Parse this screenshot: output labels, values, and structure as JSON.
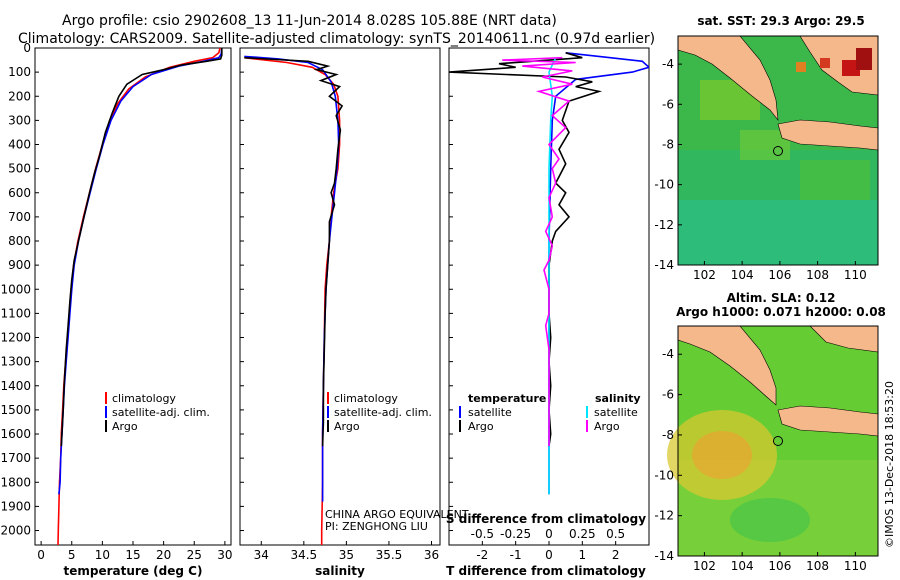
{
  "header": {
    "line1": "Argo profile: csio 2902608_13 11-Jun-2014 8.028S 105.88E (NRT data)",
    "line2": "Climatology: CARS2009. Satellite-adjusted climatology: synTS_20140611.nc (0.97d earlier)"
  },
  "depth_axis": {
    "ticks": [
      0,
      100,
      200,
      300,
      400,
      500,
      600,
      700,
      800,
      900,
      1000,
      1100,
      1200,
      1300,
      1400,
      1500,
      1600,
      1700,
      1800,
      1900,
      2000
    ],
    "range": [
      0,
      2060
    ]
  },
  "colors": {
    "climatology": "#ff0000",
    "satellite": "#0000ff",
    "argo": "#000000",
    "sal_satellite": "#00e5ff",
    "sal_argo": "#ff00ff",
    "land": "#f5b88a"
  },
  "chart_data": [
    {
      "type": "line",
      "name": "temperature-profile",
      "xlabel": "temperature (deg C)",
      "xlim": [
        -1,
        31
      ],
      "xticks": [
        0,
        5,
        10,
        15,
        20,
        25,
        30
      ],
      "ylim": [
        0,
        2060
      ],
      "y_inverted": true,
      "legend": [
        "climatology",
        "satellite-adj. clim.",
        "Argo"
      ],
      "legend_position": "bottom-center",
      "series": [
        {
          "name": "climatology",
          "color": "#ff0000",
          "points": [
            [
              29.2,
              0
            ],
            [
              29.0,
              20
            ],
            [
              28.0,
              40
            ],
            [
              25.0,
              55
            ],
            [
              21.0,
              80
            ],
            [
              17.0,
              120
            ],
            [
              14.3,
              170
            ],
            [
              12.5,
              230
            ],
            [
              11.2,
              300
            ],
            [
              10.0,
              400
            ],
            [
              8.9,
              500
            ],
            [
              7.9,
              600
            ],
            [
              6.9,
              700
            ],
            [
              6.0,
              800
            ],
            [
              5.3,
              900
            ],
            [
              4.9,
              1000
            ],
            [
              4.6,
              1100
            ],
            [
              4.3,
              1200
            ],
            [
              4.0,
              1300
            ],
            [
              3.7,
              1400
            ],
            [
              3.5,
              1500
            ],
            [
              3.3,
              1600
            ],
            [
              3.2,
              1700
            ],
            [
              3.0,
              1800
            ],
            [
              2.9,
              1900
            ],
            [
              2.8,
              2000
            ],
            [
              2.75,
              2060
            ]
          ]
        },
        {
          "name": "satellite-adj. clim.",
          "color": "#0000ff",
          "points": [
            [
              29.5,
              0
            ],
            [
              29.4,
              25
            ],
            [
              29.0,
              40
            ],
            [
              26.5,
              55
            ],
            [
              22.5,
              75
            ],
            [
              18.0,
              110
            ],
            [
              15.0,
              160
            ],
            [
              13.0,
              220
            ],
            [
              11.4,
              300
            ],
            [
              10.1,
              400
            ],
            [
              9.0,
              500
            ],
            [
              8.0,
              600
            ],
            [
              7.0,
              700
            ],
            [
              6.1,
              800
            ],
            [
              5.4,
              900
            ],
            [
              5.0,
              1000
            ],
            [
              4.7,
              1100
            ],
            [
              4.4,
              1200
            ],
            [
              4.1,
              1300
            ],
            [
              3.8,
              1400
            ],
            [
              3.6,
              1500
            ],
            [
              3.4,
              1600
            ],
            [
              3.2,
              1700
            ],
            [
              3.1,
              1800
            ],
            [
              2.9,
              1850
            ]
          ]
        },
        {
          "name": "Argo",
          "color": "#000000",
          "points": [
            [
              29.5,
              0
            ],
            [
              29.5,
              30
            ],
            [
              29.3,
              45
            ],
            [
              27.0,
              55
            ],
            [
              23.0,
              70
            ],
            [
              20.0,
              90
            ],
            [
              16.5,
              110
            ],
            [
              14.0,
              150
            ],
            [
              12.7,
              200
            ],
            [
              11.6,
              270
            ],
            [
              10.5,
              350
            ],
            [
              9.5,
              450
            ],
            [
              8.7,
              520
            ],
            [
              7.9,
              600
            ],
            [
              7.0,
              700
            ],
            [
              6.1,
              800
            ],
            [
              5.4,
              880
            ],
            [
              5.0,
              960
            ],
            [
              4.7,
              1050
            ],
            [
              4.4,
              1150
            ],
            [
              4.1,
              1250
            ],
            [
              3.8,
              1380
            ],
            [
              3.6,
              1500
            ],
            [
              3.3,
              1650
            ]
          ]
        }
      ]
    },
    {
      "type": "line",
      "name": "salinity-profile",
      "xlabel": "salinity",
      "xlim": [
        33.75,
        36.1
      ],
      "xticks": [
        34,
        34.5,
        35,
        35.5,
        36
      ],
      "ylim": [
        0,
        2060
      ],
      "y_inverted": true,
      "legend": [
        "climatology",
        "satellite-adj. clim.",
        "Argo"
      ],
      "legend_position": "bottom-center",
      "series": [
        {
          "name": "climatology",
          "color": "#ff0000",
          "points": [
            [
              33.8,
              40
            ],
            [
              34.3,
              60
            ],
            [
              34.6,
              80
            ],
            [
              34.75,
              110
            ],
            [
              34.85,
              150
            ],
            [
              34.9,
              200
            ],
            [
              34.92,
              300
            ],
            [
              34.92,
              400
            ],
            [
              34.9,
              500
            ],
            [
              34.85,
              600
            ],
            [
              34.82,
              700
            ],
            [
              34.8,
              800
            ],
            [
              34.77,
              900
            ],
            [
              34.75,
              1000
            ],
            [
              34.74,
              1200
            ],
            [
              34.73,
              1400
            ],
            [
              34.72,
              1600
            ],
            [
              34.72,
              1800
            ],
            [
              34.71,
              2000
            ],
            [
              34.71,
              2060
            ]
          ]
        },
        {
          "name": "satellite-adj. clim.",
          "color": "#0000ff",
          "points": [
            [
              33.8,
              35
            ],
            [
              34.2,
              45
            ],
            [
              34.55,
              60
            ],
            [
              34.72,
              90
            ],
            [
              34.82,
              140
            ],
            [
              34.87,
              200
            ],
            [
              34.9,
              300
            ],
            [
              34.91,
              400
            ],
            [
              34.89,
              500
            ],
            [
              34.86,
              600
            ],
            [
              34.83,
              700
            ],
            [
              34.8,
              800
            ],
            [
              34.78,
              900
            ],
            [
              34.76,
              1000
            ],
            [
              34.74,
              1200
            ],
            [
              34.73,
              1400
            ],
            [
              34.72,
              1600
            ],
            [
              34.72,
              1800
            ],
            [
              34.72,
              1880
            ]
          ]
        },
        {
          "name": "Argo",
          "color": "#000000",
          "points": [
            [
              33.8,
              40
            ],
            [
              34.55,
              55
            ],
            [
              34.78,
              75
            ],
            [
              34.65,
              90
            ],
            [
              34.88,
              110
            ],
            [
              34.7,
              135
            ],
            [
              34.92,
              160
            ],
            [
              34.8,
              200
            ],
            [
              34.95,
              240
            ],
            [
              34.88,
              280
            ],
            [
              34.93,
              340
            ],
            [
              34.9,
              420
            ],
            [
              34.88,
              500
            ],
            [
              34.86,
              560
            ],
            [
              34.82,
              600
            ],
            [
              34.86,
              650
            ],
            [
              34.8,
              720
            ],
            [
              34.8,
              800
            ],
            [
              34.78,
              900
            ],
            [
              34.76,
              1000
            ],
            [
              34.75,
              1100
            ],
            [
              34.74,
              1250
            ],
            [
              34.73,
              1400
            ],
            [
              34.73,
              1550
            ],
            [
              34.72,
              1650
            ]
          ]
        }
      ]
    },
    {
      "type": "line",
      "name": "difference-from-climatology",
      "xlabel": "T difference from climatology",
      "xlim": [
        -3,
        3
      ],
      "xticks": [
        -2,
        -1,
        0,
        1,
        2
      ],
      "x2label": "S difference from climatology",
      "x2ticks": [
        "-0.5",
        "-0.25",
        "0",
        "0.25",
        "0.5"
      ],
      "ylim": [
        0,
        2060
      ],
      "y_inverted": true,
      "legend": {
        "temperature_title": "temperature",
        "salinity_title": "salinity",
        "temperature_items": [
          "satellite",
          "Argo"
        ],
        "salinity_items": [
          "satellite",
          "Argo"
        ]
      },
      "series": [
        {
          "name": "temperature satellite",
          "color": "#0000ff",
          "points": [
            [
              0.5,
              20
            ],
            [
              1.5,
              35
            ],
            [
              2.8,
              55
            ],
            [
              3.0,
              80
            ],
            [
              2.5,
              100
            ],
            [
              0.8,
              130
            ],
            [
              0.2,
              200
            ],
            [
              0.1,
              300
            ],
            [
              0.05,
              500
            ],
            [
              0.0,
              800
            ],
            [
              0.0,
              1200
            ],
            [
              0.0,
              1500
            ],
            [
              0.0,
              1850
            ]
          ]
        },
        {
          "name": "temperature Argo",
          "color": "#000000",
          "points": [
            [
              0.5,
              20
            ],
            [
              1.0,
              40
            ],
            [
              -1.5,
              65
            ],
            [
              -1.0,
              80
            ],
            [
              -3.0,
              100
            ],
            [
              0.5,
              120
            ],
            [
              1.3,
              140
            ],
            [
              0.8,
              160
            ],
            [
              1.5,
              180
            ],
            [
              0.6,
              220
            ],
            [
              0.4,
              300
            ],
            [
              0.6,
              350
            ],
            [
              0.3,
              420
            ],
            [
              0.5,
              480
            ],
            [
              0.2,
              560
            ],
            [
              0.5,
              600
            ],
            [
              0.3,
              650
            ],
            [
              0.6,
              700
            ],
            [
              0.2,
              760
            ],
            [
              0.1,
              800
            ],
            [
              0.0,
              900
            ],
            [
              0.0,
              1000
            ],
            [
              0.0,
              1100
            ],
            [
              0.05,
              1200
            ],
            [
              0.0,
              1300
            ],
            [
              0.05,
              1400
            ],
            [
              0.0,
              1500
            ],
            [
              0.05,
              1600
            ],
            [
              0.0,
              1650
            ]
          ]
        },
        {
          "name": "salinity satellite",
          "color": "#00e5ff",
          "points": [
            [
              0.2,
              40
            ],
            [
              0.0,
              100
            ],
            [
              0.1,
              200
            ],
            [
              0.05,
              300
            ],
            [
              0.0,
              500
            ],
            [
              0.0,
              700
            ],
            [
              0.0,
              900
            ],
            [
              0.0,
              1200
            ],
            [
              0.0,
              1500
            ],
            [
              0.0,
              1850
            ]
          ]
        },
        {
          "name": "salinity Argo",
          "color": "#ff00ff",
          "points": [
            [
              0.4,
              40
            ],
            [
              -1.4,
              50
            ],
            [
              0.8,
              60
            ],
            [
              -0.8,
              75
            ],
            [
              0.7,
              95
            ],
            [
              -0.2,
              120
            ],
            [
              0.7,
              150
            ],
            [
              -0.3,
              180
            ],
            [
              0.6,
              220
            ],
            [
              0.1,
              280
            ],
            [
              0.5,
              330
            ],
            [
              0.0,
              400
            ],
            [
              0.3,
              460
            ],
            [
              0.1,
              500
            ],
            [
              0.2,
              560
            ],
            [
              0.0,
              620
            ],
            [
              0.1,
              700
            ],
            [
              -0.1,
              760
            ],
            [
              0.1,
              820
            ],
            [
              0.0,
              880
            ],
            [
              -0.15,
              920
            ],
            [
              0.0,
              1000
            ],
            [
              0.0,
              1100
            ],
            [
              -0.1,
              1150
            ],
            [
              0.0,
              1250
            ],
            [
              0.0,
              1400
            ],
            [
              0.0,
              1500
            ],
            [
              0.0,
              1600
            ],
            [
              0.0,
              1650
            ]
          ]
        }
      ]
    },
    {
      "type": "heatmap",
      "name": "sst-map",
      "title": "sat. SST: 29.3 Argo: 29.5",
      "xticks": [
        "102",
        "104",
        "106",
        "108",
        "110"
      ],
      "yticks": [
        "-4",
        "-6",
        "-8",
        "-10",
        "-12",
        "-14"
      ]
    },
    {
      "type": "heatmap",
      "name": "sla-map",
      "title_line1": "Altim. SLA: 0.12",
      "title_line2": "Argo h1000: 0.071 h2000: 0.08",
      "xticks": [
        "102",
        "104",
        "106",
        "108",
        "110"
      ],
      "yticks": [
        "-4",
        "-6",
        "-8",
        "-10",
        "-12",
        "-14"
      ]
    }
  ],
  "panels": {
    "temperature": {
      "legend": {
        "climatology": "climatology",
        "satellite": "satellite-adj. clim.",
        "argo": "Argo"
      }
    },
    "salinity": {
      "legend": {
        "climatology": "climatology",
        "satellite": "satellite-adj. clim.",
        "argo": "Argo"
      },
      "credit_line1": "CHINA ARGO EQUIVALENT",
      "credit_line2": "PI: ZENGHONG LIU"
    }
  },
  "footer": {
    "timestamp": "©IMOS 13-Dec-2018 18:53:20"
  }
}
